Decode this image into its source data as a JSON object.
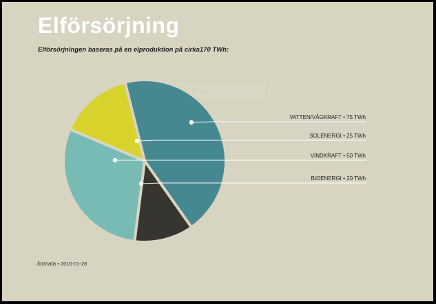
{
  "title": "Elförsörjning",
  "subtitle": "Elförsörjningen baseras på en elproduktion på cirka170 TWh:",
  "overlay_text": "Rektangulärt klipp",
  "footer": {
    "brand": "formata",
    "date": "2016-01-28"
  },
  "colors": {
    "background": "#d8d4c2",
    "title": "#ffffff",
    "slice_gap": "#d8d4c2"
  },
  "chart_data": {
    "type": "pie",
    "total_label": "cirka170 TWh",
    "slices": [
      {
        "label": "VATTEN/VÅGKRAFT",
        "value": 75,
        "unit": "TWh",
        "color": "#458890",
        "display": "VATTEN/VÅGKRAFT  •  75 TWh"
      },
      {
        "label": "BIOENERGI",
        "value": 20,
        "unit": "TWh",
        "color": "#373530",
        "display": "BIOENERGI  •  20 TWh"
      },
      {
        "label": "VINDKRAFT",
        "value": 50,
        "unit": "TWh",
        "color": "#78bbb5",
        "display": "VINDKRAFT  •  50 TWh"
      },
      {
        "label": "SOLENERGI",
        "value": 25,
        "unit": "TWh",
        "color": "#d8d22c",
        "display": "SOLENERGI  •  25 TWh"
      }
    ]
  }
}
